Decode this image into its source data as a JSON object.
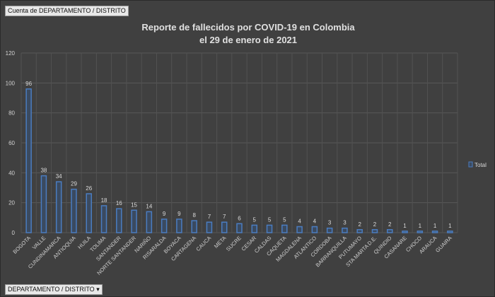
{
  "field_buttons": {
    "values_field": "Cuenta de DEPARTAMENTO / DISTRITO",
    "axis_field": "DEPARTAMENTO / DISTRITO",
    "axis_field_icon": "dropdown-arrow-icon"
  },
  "chart_data": {
    "type": "bar",
    "title": "Reporte de fallecidos por COVID-19 en Colombia",
    "subtitle": "el 29 de enero de 2021",
    "categories": [
      "BOGOTA",
      "VALLE",
      "CUNDINAMARCA",
      "ANTIOQUIA",
      "HUILA",
      "TOLIMA",
      "SANTANDER",
      "NORTE SANTANDER",
      "NARIÑO",
      "RISARALDA",
      "BOYACA",
      "CARTAGENA",
      "CAUCA",
      "META",
      "SUCRE",
      "CESAR",
      "CALDAS",
      "CAQUETA",
      "MAGDALENA",
      "ATLANTICO",
      "CORDOBA",
      "BARRANQUILLA",
      "PUTUMAYO",
      "STA MARTA D.E.",
      "QUINDIO",
      "CASANARE",
      "CHOCO",
      "ARAUCA",
      "GUAIRA"
    ],
    "series": [
      {
        "name": "Total",
        "values": [
          96,
          38,
          34,
          29,
          26,
          18,
          16,
          15,
          14,
          9,
          9,
          8,
          7,
          7,
          6,
          5,
          5,
          5,
          4,
          4,
          3,
          3,
          2,
          2,
          2,
          1,
          1,
          1,
          1
        ]
      }
    ],
    "ylim": [
      0,
      120
    ],
    "yticks": [
      0,
      20,
      40,
      60,
      80,
      100,
      120
    ],
    "grid": true,
    "legend": "right",
    "data_labels": true,
    "colors": {
      "bar_outline": "#4a7cc0",
      "background": "#404040",
      "text": "#d9d9d9"
    }
  }
}
